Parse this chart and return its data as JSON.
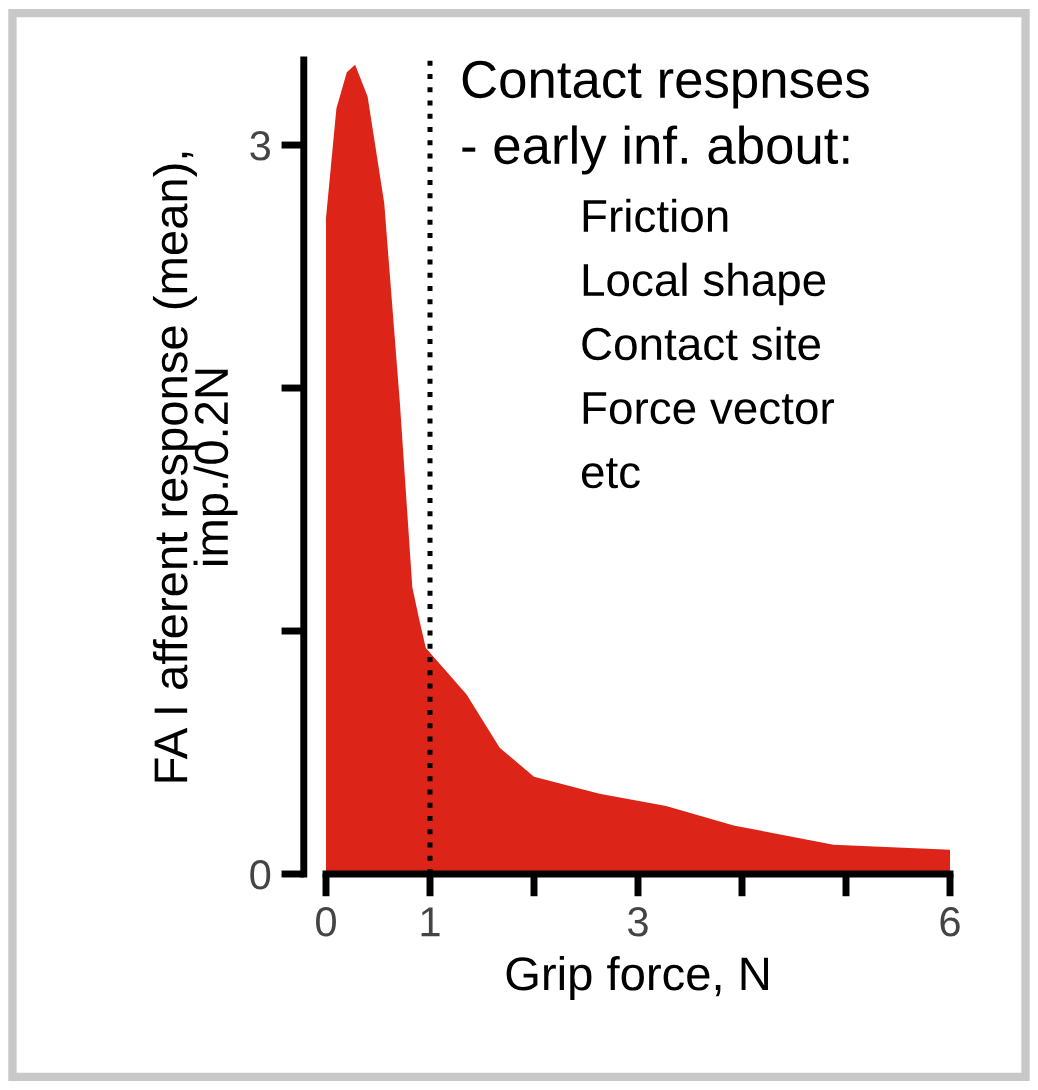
{
  "chart_data": {
    "type": "area",
    "xlabel": "Grip force, N",
    "ylabel": "FA I afferent response (mean),\nimp./0.2N",
    "series": [
      {
        "color": "#dd2418",
        "x": [
          0,
          0.1,
          0.2,
          0.28,
          0.4,
          0.56,
          0.71,
          0.83,
          0.9,
          0.96,
          1.35,
          1.67,
          2.0,
          2.63,
          3.27,
          3.92,
          4.88,
          6
        ],
        "values": [
          2.7,
          3.15,
          3.3,
          3.33,
          3.2,
          2.76,
          1.94,
          1.18,
          1.04,
          0.93,
          0.74,
          0.52,
          0.4,
          0.33,
          0.28,
          0.2,
          0.12,
          0.1
        ]
      }
    ],
    "xlim": [
      0,
      6
    ],
    "xticks": [
      0,
      1,
      {
        "value": 2,
        "label": null
      },
      3,
      {
        "value": 4,
        "label": null
      },
      {
        "value": 5,
        "label": null
      },
      6
    ],
    "ylim": [
      0,
      3.35
    ],
    "yticks": [
      0,
      {
        "value": 1,
        "label": null
      },
      {
        "value": 2,
        "label": null
      },
      3
    ],
    "ref_lines": [
      {
        "axis": "x",
        "value": 1,
        "line_style": "dotted",
        "color": "#000000"
      }
    ],
    "annotations": [
      "Contact respnses",
      "- early inf. about:",
      "Friction",
      "Local shape",
      "Contact site",
      "Force vector",
      "etc"
    ],
    "grid": false,
    "legend": false
  }
}
